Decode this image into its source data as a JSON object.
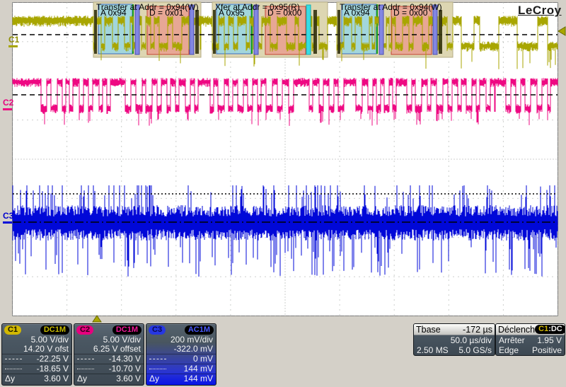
{
  "scope": {
    "brand": "LeCroy",
    "colors": {
      "c1": "#a8a600",
      "c2": "#ee0882",
      "c3": "#0008d8",
      "accent_badge_yellow": "#d2b800",
      "panel_slate": "#4a5762",
      "selected_blue": "#0813e8"
    },
    "channels": [
      {
        "id": "C1",
        "coupling": "DC1M",
        "vdiv": "5.00 V/div",
        "offset": "14.20 V ofst",
        "cursor1": "-22.25 V",
        "cursor2": "-18.65 V",
        "dy_label": "Δy",
        "dy": "3.60 V"
      },
      {
        "id": "C2",
        "coupling": "DC1M",
        "vdiv": "5.00 V/div",
        "offset": "6.25 V offset",
        "cursor1": "-14.30 V",
        "cursor2": "-10.70 V",
        "dy_label": "Δy",
        "dy": "3.60 V"
      },
      {
        "id": "C3",
        "coupling": "AC1M",
        "vdiv": "200 mV/div",
        "offset": "-322.0 mV",
        "cursor1": "0 mV",
        "cursor2": "144 mV",
        "dy_label": "Δy",
        "dy": "144 mV"
      }
    ],
    "timebase": {
      "label": "Tbase",
      "delay": "-172 µs",
      "tdiv": "50.0 µs/div",
      "samples": "2.50 MS",
      "rate": "5.0 GS/s"
    },
    "trigger": {
      "label": "Déclench",
      "source": "C1",
      "badge_separator": ":",
      "coupling": "DC",
      "mode_label": "Arrêter",
      "level": "1.95 V",
      "type_label": "Edge",
      "slope": "Positive"
    },
    "decodes": [
      {
        "title": "Transfer at Addr = 0x94(W)",
        "addr": "A 0x94",
        "data": "D = 0x01"
      },
      {
        "title": "Xfer at Addr = 0x95(R)",
        "addr": "A 0x95",
        "data": "D = 0x00"
      },
      {
        "title": "Transfer at Addr = 0x94(W)",
        "addr": "A 0x94",
        "data": "D = 0x00"
      }
    ]
  }
}
